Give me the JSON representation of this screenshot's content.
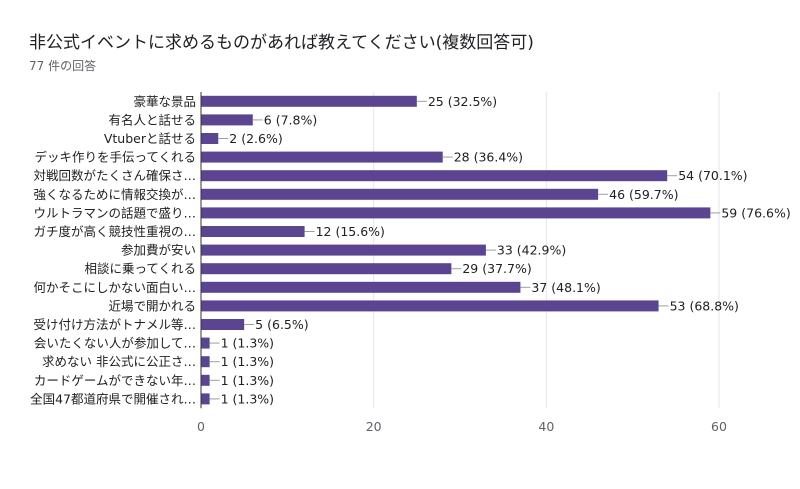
{
  "chart_data": {
    "type": "bar",
    "orientation": "horizontal",
    "title": "非公式イベントに求めるものがあれば教えてください(複数回答可)",
    "subtitle": "77 件の回答",
    "categories": [
      "豪華な景品",
      "有名人と話せる",
      "Vtuberと話せる",
      "デッキ作りを手伝ってくれる",
      "対戦回数がたくさん確保さ…",
      "強くなるために情報交換が…",
      "ウルトラマンの話題で盛り…",
      "ガチ度が高く競技性重視の…",
      "参加費が安い",
      "相談に乗ってくれる",
      "何かそこにしかない面白い…",
      "近場で開かれる",
      "受け付け方法がトナメル等…",
      "会いたくない人が参加して…",
      "求めない 非公式に公正さ…",
      "カードゲームができない年…",
      "全国47都道府県で開催され…"
    ],
    "values": [
      25,
      6,
      2,
      28,
      54,
      46,
      59,
      12,
      33,
      29,
      37,
      53,
      5,
      1,
      1,
      1,
      1
    ],
    "value_labels": [
      "25 (32.5%)",
      "6 (7.8%)",
      "2 (2.6%)",
      "28 (36.4%)",
      "54 (70.1%)",
      "46 (59.7%)",
      "59 (76.6%)",
      "12 (15.6%)",
      "33 (42.9%)",
      "29 (37.7%)",
      "37 (48.1%)",
      "53 (68.8%)",
      "5 (6.5%)",
      "1 (1.3%)",
      "1 (1.3%)",
      "1 (1.3%)",
      "1 (1.3%)"
    ],
    "xlim": [
      0,
      60
    ],
    "xticks": [
      0,
      20,
      40,
      60
    ],
    "xtick_labels": [
      "0",
      "20",
      "40",
      "60"
    ],
    "grid": true,
    "bar_color": "#5c4590"
  }
}
